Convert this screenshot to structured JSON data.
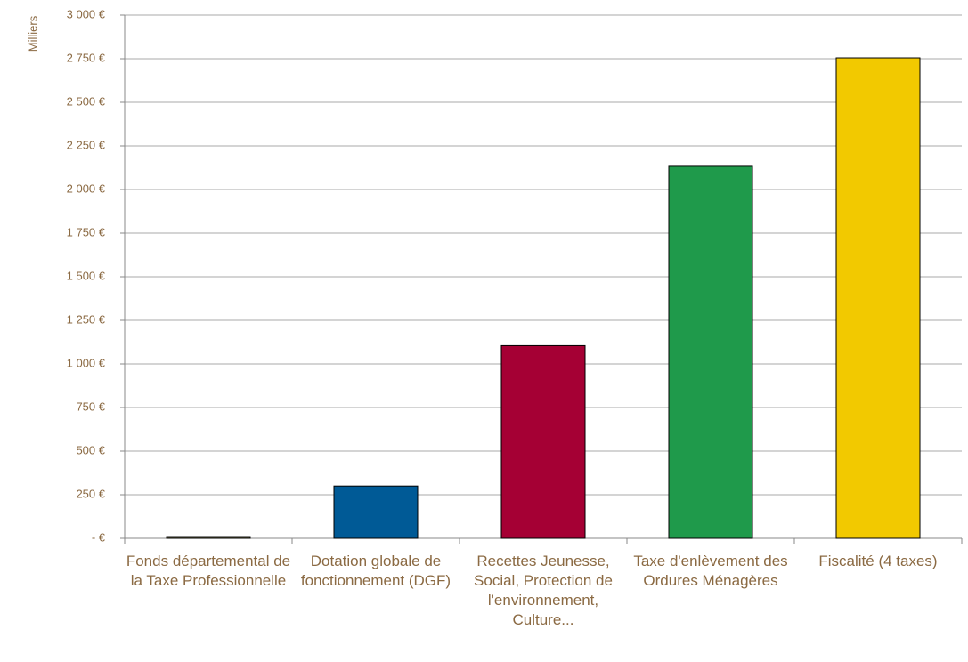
{
  "chart_data": {
    "type": "bar",
    "y_label": "Milliers",
    "categories": [
      "Fonds départemental de la Taxe Professionnelle",
      "Dotation globale de fonctionnement (DGF)",
      "Recettes Jeunesse, Social, Protection de l'environnement, Culture...",
      "Taxe d'enlèvement des Ordures Ménagères",
      "Fiscalité (4 taxes)"
    ],
    "values": [
      10,
      300,
      1105,
      2133,
      2755
    ],
    "colors": [
      "#4d4a2e",
      "#005a96",
      "#a50034",
      "#1f9a4b",
      "#f2c900"
    ],
    "ylim": [
      0,
      3000
    ],
    "yticks": [
      {
        "value": 0,
        "label": "-  €"
      },
      {
        "value": 250,
        "label": "250 €"
      },
      {
        "value": 500,
        "label": "500 €"
      },
      {
        "value": 750,
        "label": "750 €"
      },
      {
        "value": 1000,
        "label": "1 000 €"
      },
      {
        "value": 1250,
        "label": "1 250 €"
      },
      {
        "value": 1500,
        "label": "1 500 €"
      },
      {
        "value": 1750,
        "label": "1 750 €"
      },
      {
        "value": 2000,
        "label": "2 000 €"
      },
      {
        "value": 2250,
        "label": "2 250 €"
      },
      {
        "value": 2500,
        "label": "2 500 €"
      },
      {
        "value": 2750,
        "label": "2 750 €"
      },
      {
        "value": 3000,
        "label": "3 000 €"
      }
    ],
    "grid": true
  }
}
